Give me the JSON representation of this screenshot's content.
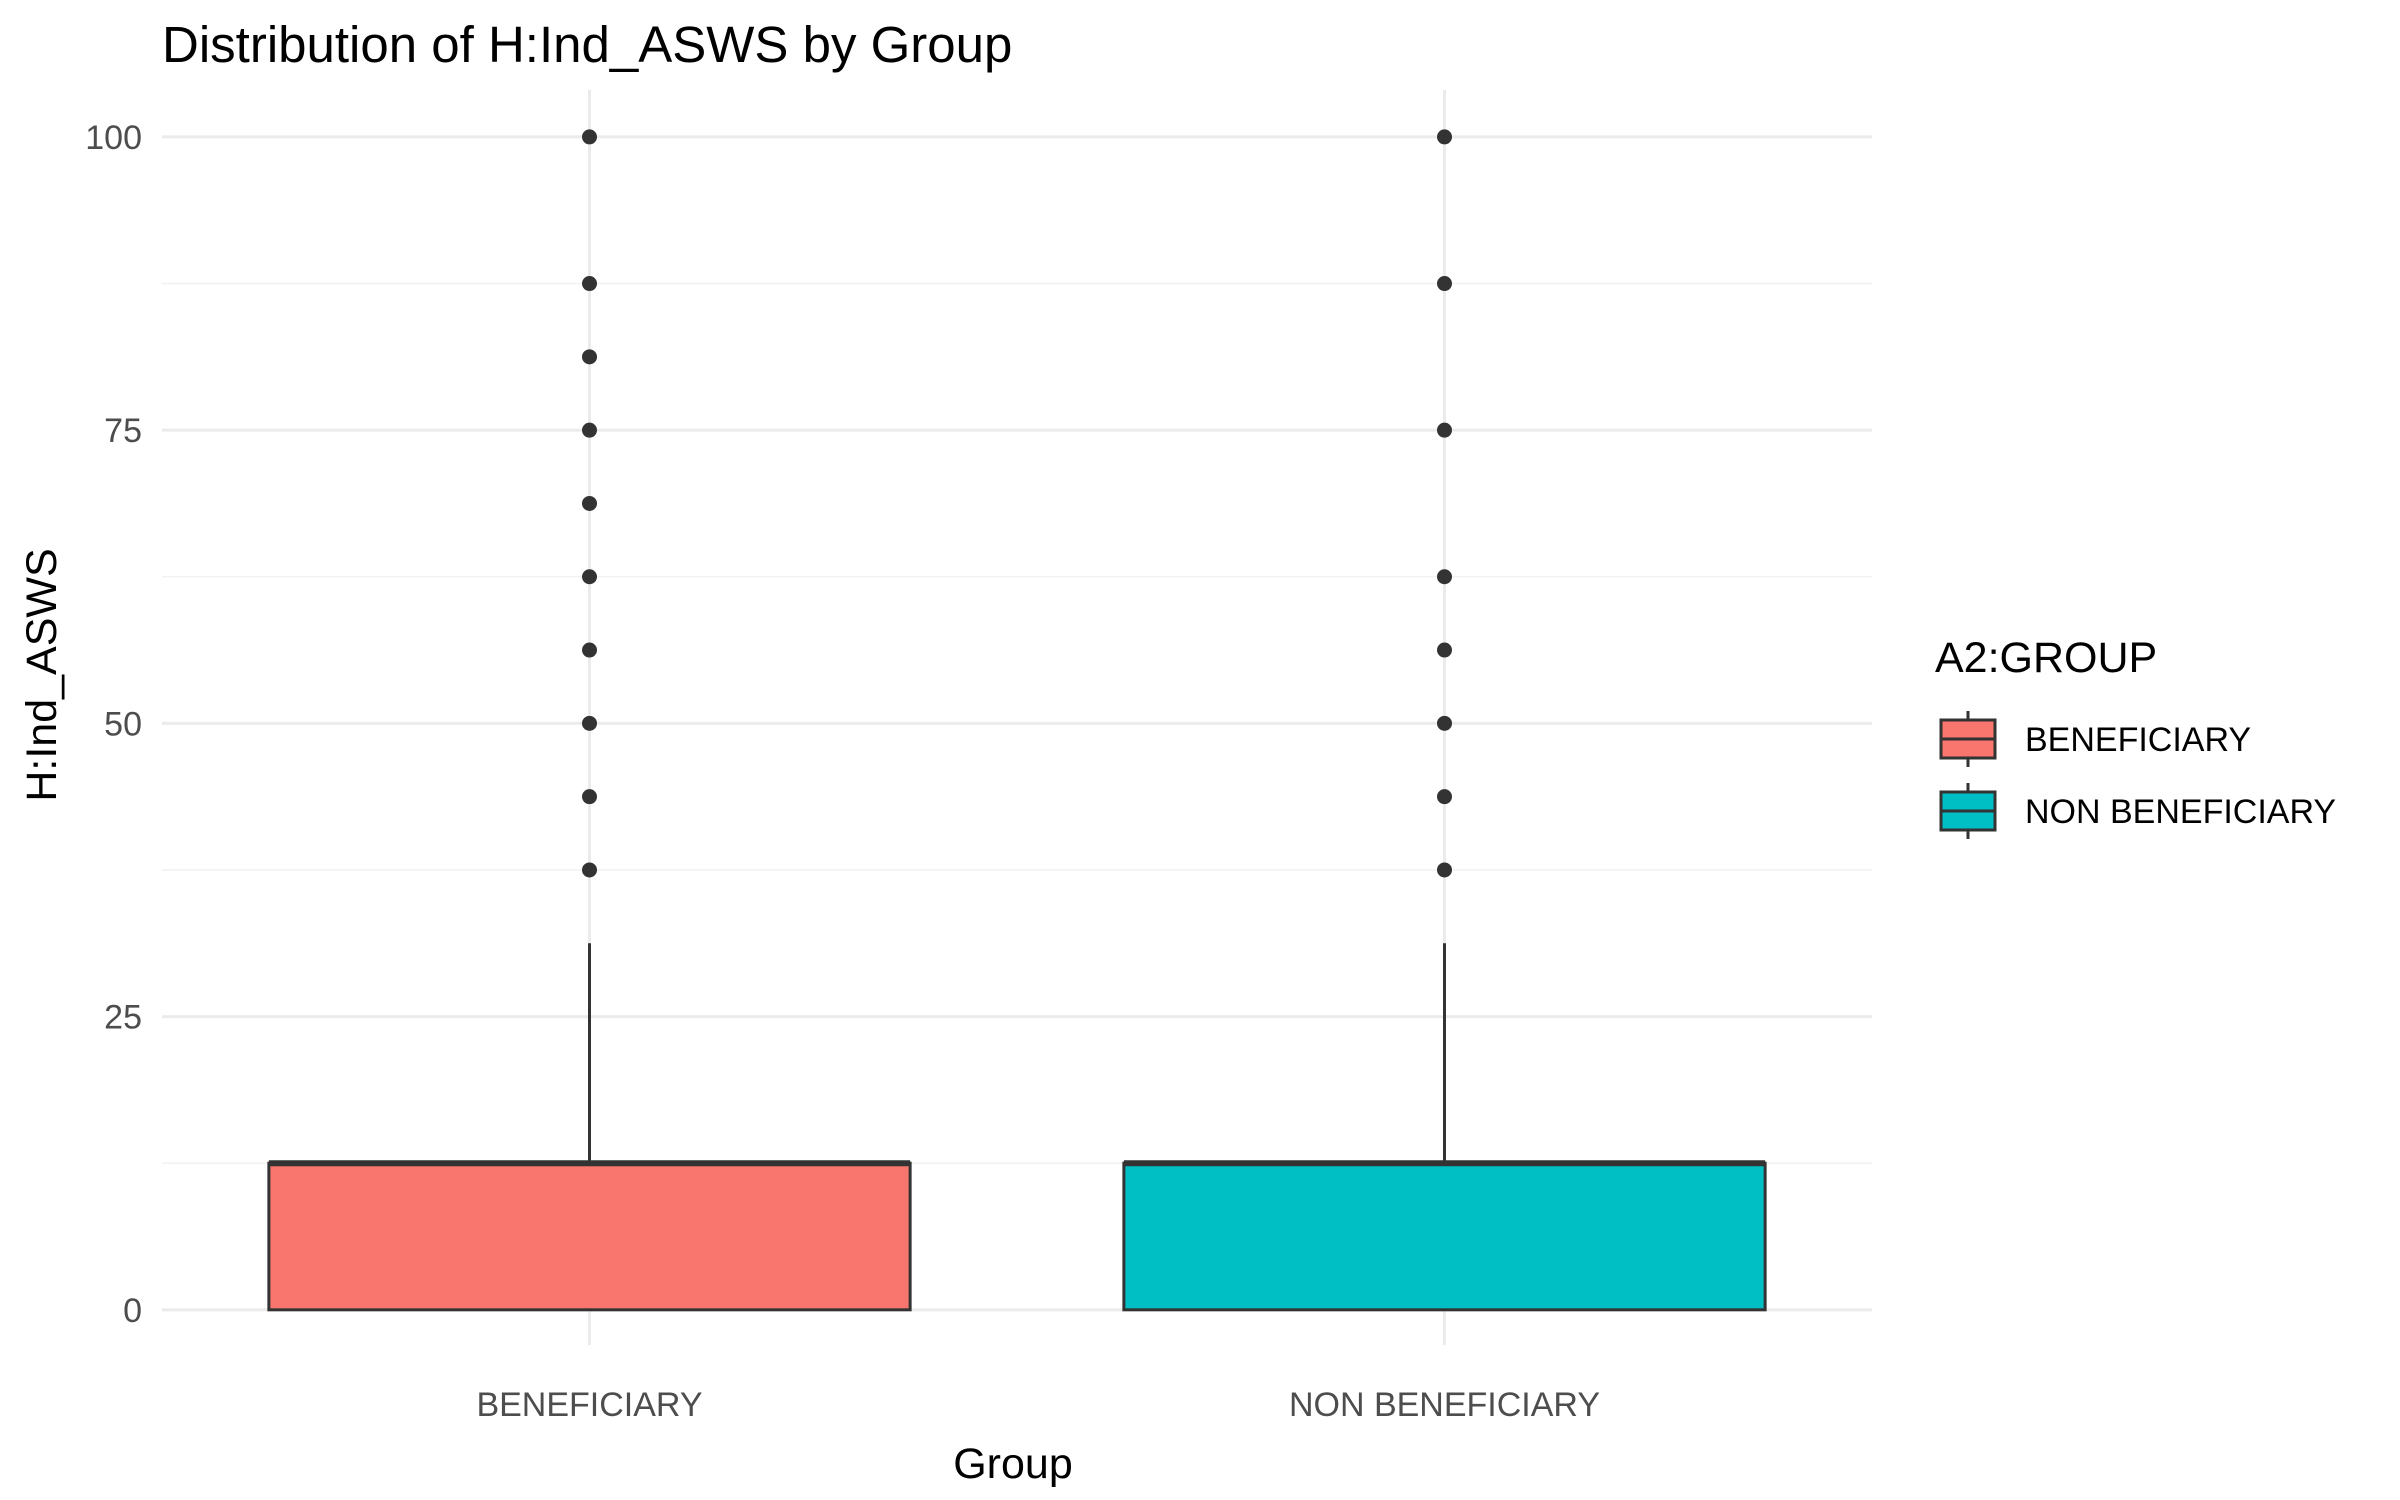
{
  "chart_data": {
    "type": "boxplot",
    "title": "Distribution of H:Ind_ASWS by Group",
    "xlabel": "Group",
    "ylabel": "H:Ind_ASWS",
    "categories": [
      "BENEFICIARY",
      "NON BENEFICIARY"
    ],
    "ylim": [
      -3,
      104
    ],
    "yticks": [
      0,
      25,
      50,
      75,
      100
    ],
    "grid": true,
    "legend": {
      "title": "A2:GROUP",
      "position": "right",
      "entries": [
        "BENEFICIARY",
        "NON BENEFICIARY"
      ]
    },
    "series": [
      {
        "category": "BENEFICIARY",
        "color": "#F8766D",
        "q1": 0,
        "median": 12.5,
        "q3": 12.5,
        "whisker_low": 0,
        "whisker_high": 31.25,
        "outliers": [
          37.5,
          43.75,
          50,
          56.25,
          62.5,
          68.75,
          75,
          81.25,
          87.5,
          100
        ]
      },
      {
        "category": "NON BENEFICIARY",
        "color": "#00BFC4",
        "q1": 0,
        "median": 12.5,
        "q3": 12.5,
        "whisker_low": 0,
        "whisker_high": 31.25,
        "outliers": [
          37.5,
          43.75,
          50,
          56.25,
          62.5,
          75,
          87.5,
          100
        ]
      }
    ]
  }
}
